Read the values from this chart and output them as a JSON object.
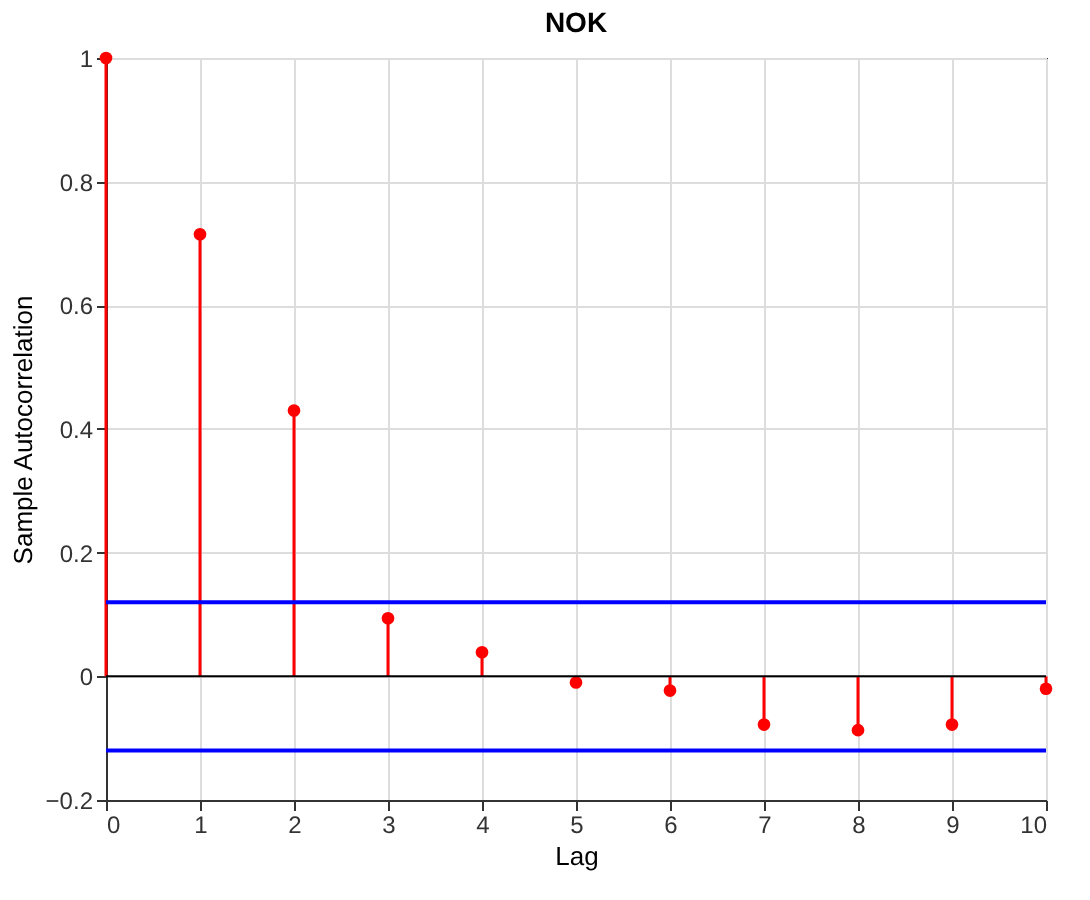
{
  "chart_data": {
    "type": "lollipop",
    "title": "NOK",
    "xlabel": "Lag",
    "ylabel": "Sample Autocorrelation",
    "x": [
      0,
      1,
      2,
      3,
      4,
      5,
      6,
      7,
      8,
      9,
      10
    ],
    "series": [
      {
        "color": "#ff0000",
        "values": [
          1,
          0.715,
          0.43,
          0.094,
          0.039,
          -0.01,
          -0.023,
          -0.078,
          -0.087,
          -0.078,
          -0.02
        ]
      }
    ],
    "xlim": [
      0,
      10
    ],
    "xticks": [
      0,
      1,
      2,
      3,
      4,
      5,
      6,
      7,
      8,
      9,
      10
    ],
    "ylim": [
      -0.2,
      1
    ],
    "yticks": [
      -0.2,
      0,
      0.2,
      0.4,
      0.6,
      0.8,
      1
    ],
    "ref_lines": [
      {
        "axis": "y",
        "value": 0.12,
        "color": "#0000ff"
      },
      {
        "axis": "y",
        "value": -0.12,
        "color": "#0000ff"
      }
    ],
    "grid": true,
    "marker": "circle"
  }
}
